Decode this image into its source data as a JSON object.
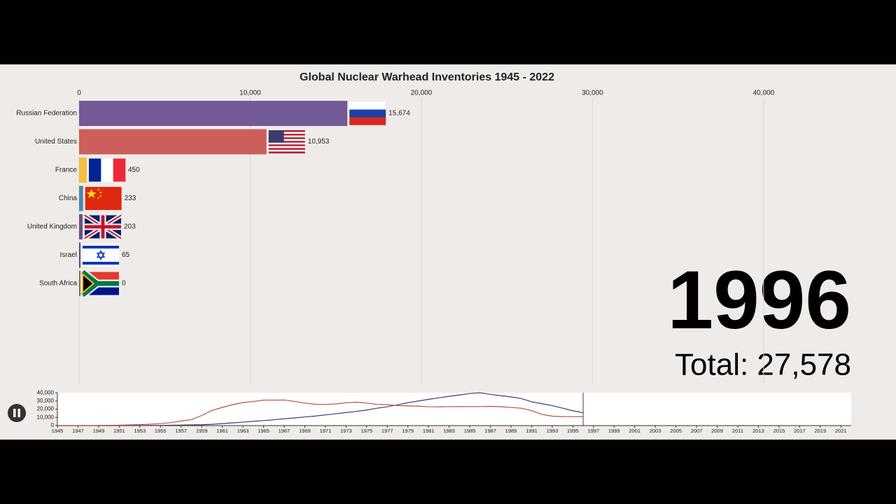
{
  "chart_data": [
    {
      "type": "bar",
      "orientation": "horizontal",
      "title": "Global Nuclear Warhead Inventories 1945 - 2022",
      "categories": [
        "Russian Federation",
        "United States",
        "France",
        "China",
        "United Kingdom",
        "Israel",
        "South Africa"
      ],
      "values": [
        15674,
        10953,
        450,
        233,
        203,
        65,
        0
      ],
      "value_labels": [
        "15,674",
        "10,953",
        "450",
        "233",
        "203",
        "65",
        "0"
      ],
      "colors": [
        "#735a97",
        "#cc5f5b",
        "#f0c23e",
        "#4f88a5",
        "#6b4f7f",
        "#5a4a78",
        "#7a6a5a"
      ],
      "xlim": [
        0,
        47000
      ],
      "xticks": [
        0,
        {
          "value": 10000,
          "label": "10,000"
        },
        {
          "value": 20000,
          "label": "20,000"
        },
        {
          "value": 30000,
          "label": "30,000"
        },
        {
          "value": 40000,
          "label": "40,000"
        }
      ],
      "grid": true
    },
    {
      "type": "line",
      "x": [
        1945,
        1946,
        1947,
        1948,
        1949,
        1950,
        1951,
        1952,
        1953,
        1954,
        1955,
        1956,
        1957,
        1958,
        1959,
        1960,
        1961,
        1962,
        1963,
        1964,
        1965,
        1966,
        1967,
        1968,
        1969,
        1970,
        1971,
        1972,
        1973,
        1974,
        1975,
        1976,
        1977,
        1978,
        1979,
        1980,
        1981,
        1982,
        1983,
        1984,
        1985,
        1986,
        1987,
        1988,
        1989,
        1990,
        1991,
        1992,
        1993,
        1994,
        1995,
        1996
      ],
      "series": [
        {
          "name": "Russian Federation",
          "color": "#3b3b78",
          "values": [
            0,
            0,
            0,
            0,
            1,
            5,
            25,
            50,
            120,
            150,
            200,
            426,
            660,
            869,
            1060,
            1605,
            2471,
            3322,
            4238,
            5221,
            6129,
            7089,
            8339,
            9399,
            10538,
            11643,
            13092,
            14478,
            15915,
            17385,
            19055,
            21205,
            23044,
            25393,
            27935,
            30062,
            32049,
            33952,
            35804,
            37431,
            39197,
            40159,
            38107,
            36538,
            35078,
            32980,
            29154,
            26734,
            24403,
            21339,
            18179,
            15674
          ]
        },
        {
          "name": "United States",
          "color": "#b5523b",
          "values": [
            2,
            9,
            13,
            50,
            170,
            299,
            438,
            841,
            1169,
            1703,
            2422,
            3692,
            5543,
            7345,
            12298,
            18638,
            22229,
            25540,
            28133,
            29463,
            31139,
            31175,
            31255,
            29561,
            27552,
            26008,
            25830,
            26516,
            27835,
            28537,
            27519,
            25914,
            25542,
            24418,
            24138,
            23764,
            23031,
            22937,
            23154,
            23228,
            23135,
            23254,
            23490,
            23077,
            22174,
            21211,
            18306,
            13731,
            11536,
            11012,
            10953,
            10953
          ]
        }
      ],
      "xlim": [
        1945,
        2022
      ],
      "xticks": [
        1945,
        1947,
        1949,
        1951,
        1953,
        1955,
        1957,
        1959,
        1961,
        1963,
        1965,
        1967,
        1969,
        1971,
        1973,
        1975,
        1977,
        1979,
        1981,
        1983,
        1985,
        1987,
        1989,
        1991,
        1993,
        1995,
        1997,
        1999,
        2001,
        2003,
        2005,
        2007,
        2009,
        2011,
        2013,
        2015,
        2017,
        2019,
        2021
      ],
      "ylim": [
        0,
        40200
      ],
      "yticks": [
        0,
        {
          "value": 10000,
          "label": "10,000"
        },
        {
          "value": 20000,
          "label": "20,000"
        },
        {
          "value": 30000,
          "label": "30,000"
        },
        {
          "value": 40000,
          "label": "40,000"
        }
      ]
    }
  ],
  "year": "1996",
  "total": "Total: 27,578"
}
